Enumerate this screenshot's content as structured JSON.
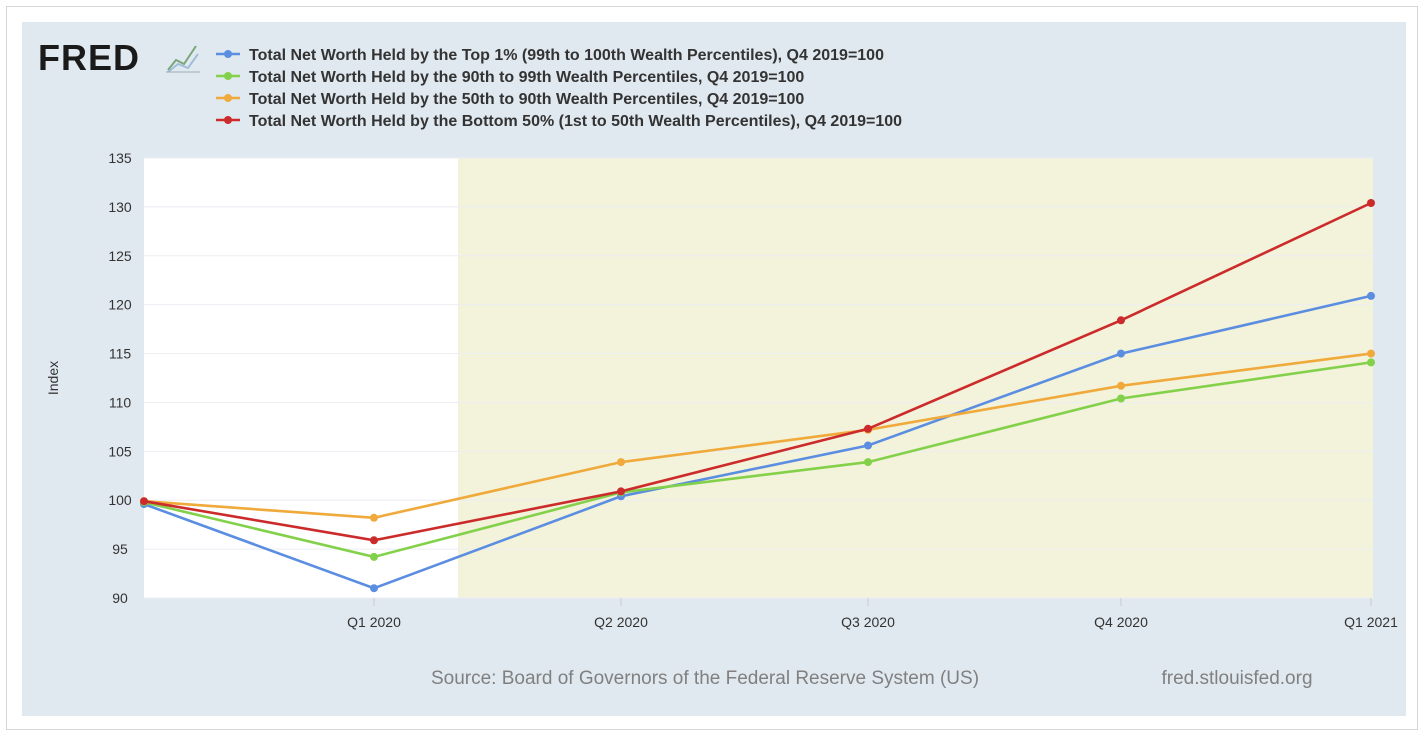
{
  "logo": {
    "text": "FRED",
    "mark": "chart-line-icon"
  },
  "footer": {
    "source": "Source: Board of Governors of the Federal Reserve System (US)",
    "site": "fred.stlouisfed.org"
  },
  "colors": {
    "panel": "#e1e9f0",
    "recession": "#f3f2da",
    "grid": "#eef0f3"
  },
  "chart_data": {
    "type": "line",
    "ylabel": "Index",
    "xlabel": "",
    "ylim": [
      90,
      135
    ],
    "yticks": [
      "135",
      "130",
      "125",
      "120",
      "115",
      "110",
      "105",
      "100",
      "95",
      "90"
    ],
    "categories": [
      "Q4 2019",
      "Q1 2020",
      "Q2 2020",
      "Q3 2020",
      "Q4 2020",
      "Q1 2021"
    ],
    "xtick_labels": [
      "",
      "Q1 2020",
      "Q2 2020",
      "Q3 2020",
      "Q4 2020",
      "Q1 2021"
    ],
    "shaded_region": {
      "from": "2020-03",
      "to": "Q1 2021",
      "color": "#f3f2da"
    },
    "series": [
      {
        "name": "Total Net Worth Held by the Top 1% (99th to 100th Wealth Percentiles), Q4 2019=100",
        "color": "#5b8ee0",
        "values": [
          99.6,
          91.0,
          100.4,
          105.6,
          115.0,
          120.9
        ]
      },
      {
        "name": "Total Net Worth Held by the 90th to 99th Wealth Percentiles, Q4 2019=100",
        "color": "#83d14a",
        "values": [
          99.8,
          94.2,
          100.8,
          103.9,
          110.4,
          114.1
        ]
      },
      {
        "name": "Total Net Worth Held by the 50th to 90th Wealth Percentiles, Q4 2019=100",
        "color": "#f0a93b",
        "values": [
          99.9,
          98.2,
          103.9,
          107.2,
          111.7,
          115.0
        ]
      },
      {
        "name": "Total Net Worth Held by the Bottom 50% (1st to 50th Wealth Percentiles), Q4 2019=100",
        "color": "#cc2b2b",
        "values": [
          99.9,
          95.9,
          100.9,
          107.3,
          118.4,
          130.4
        ]
      }
    ]
  }
}
